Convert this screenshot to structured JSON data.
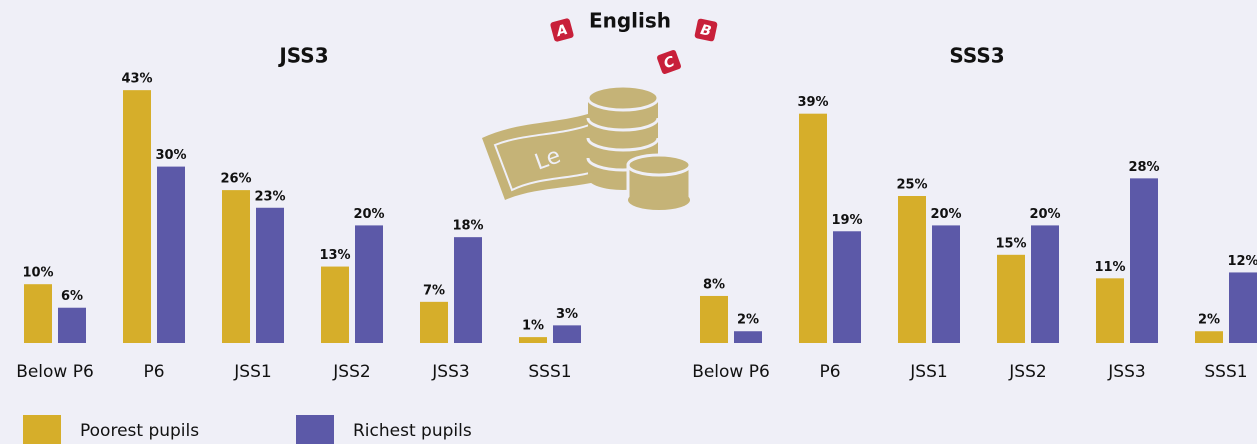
{
  "title": "English",
  "badges": [
    "A",
    "B",
    "C"
  ],
  "currency": "Le",
  "chart_data": [
    {
      "type": "bar",
      "title": "JSS3",
      "categories": [
        "Below P6",
        "P6",
        "JSS1",
        "JSS2",
        "JSS3",
        "SSS1"
      ],
      "series": [
        {
          "name": "Poorest pupils",
          "color": "#d6ae2a",
          "values": [
            10,
            43,
            26,
            13,
            7,
            1
          ],
          "value_labels": [
            "10%",
            "43%",
            "26%",
            "13%",
            "7%",
            "1%"
          ]
        },
        {
          "name": "Richest pupils",
          "color": "#5c59a8",
          "values": [
            6,
            30,
            23,
            20,
            18,
            3
          ],
          "value_labels": [
            "6%",
            "30%",
            "23%",
            "20%",
            "18%",
            "3%"
          ]
        }
      ]
    },
    {
      "type": "bar",
      "title": "SSS3",
      "categories": [
        "Below P6",
        "P6",
        "JSS1",
        "JSS2",
        "JSS3",
        "SSS1"
      ],
      "series": [
        {
          "name": "Poorest pupils",
          "color": "#d6ae2a",
          "values": [
            8,
            39,
            25,
            15,
            11,
            2
          ],
          "value_labels": [
            "8%",
            "39%",
            "25%",
            "15%",
            "11%",
            "2%"
          ]
        },
        {
          "name": "Richest pupils",
          "color": "#5c59a8",
          "values": [
            2,
            19,
            20,
            20,
            28,
            12
          ],
          "value_labels": [
            "2%",
            "19%",
            "20%",
            "20%",
            "28%",
            "12%"
          ]
        }
      ]
    }
  ]
}
